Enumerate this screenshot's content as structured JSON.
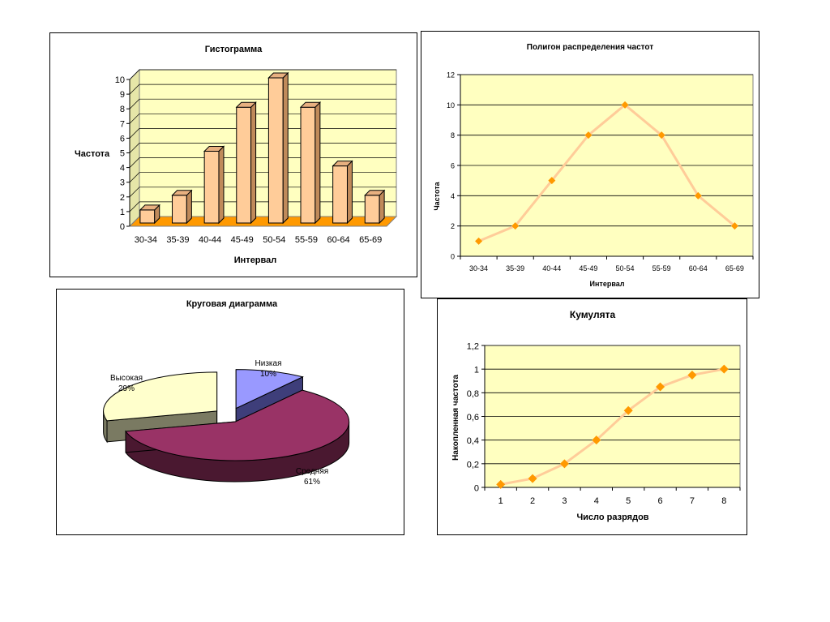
{
  "chart_data": [
    {
      "type": "bar",
      "title": "Гистограмма",
      "xlabel": "Интервал",
      "ylabel": "Частота",
      "categories": [
        "30-34",
        "35-39",
        "40-44",
        "45-49",
        "50-54",
        "55-59",
        "60-64",
        "65-69"
      ],
      "values": [
        1,
        2,
        5,
        8,
        10,
        8,
        4,
        2
      ],
      "ylim": [
        0,
        10
      ],
      "yticks": [
        "0",
        "1",
        "2",
        "3",
        "4",
        "5",
        "6",
        "7",
        "8",
        "9",
        "10"
      ],
      "grid": true,
      "style": "3d",
      "colors": {
        "bar": "#FFCC99",
        "plot_bg": "#FFFFC0",
        "floor": "#FF9900"
      }
    },
    {
      "type": "line",
      "title": "Полигон распределения частот",
      "xlabel": "Интервал",
      "ylabel": "Частота",
      "categories": [
        "30-34",
        "35-39",
        "40-44",
        "45-49",
        "50-54",
        "55-59",
        "60-64",
        "65-69"
      ],
      "values": [
        1,
        2,
        5,
        8,
        10,
        8,
        4,
        2
      ],
      "ylim": [
        0,
        12
      ],
      "yticks": [
        "0",
        "2",
        "4",
        "6",
        "8",
        "10",
        "12"
      ],
      "grid": true,
      "colors": {
        "line": "#FFCC99",
        "marker": "#FF9900",
        "plot_bg": "#FFFFC0"
      }
    },
    {
      "type": "pie",
      "title": "Круговая диаграмма",
      "style": "3d-exploded",
      "slices": [
        {
          "label": "Низкая",
          "pct_label": "10%",
          "value": 10,
          "color": "#9999FF",
          "side": "#3E3E7A"
        },
        {
          "label": "Средняя",
          "pct_label": "61%",
          "value": 61,
          "color": "#993366",
          "side": "#4A1830"
        },
        {
          "label": "Высокая",
          "pct_label": "29%",
          "value": 29,
          "color": "#FFFFCC",
          "side": "#7A7A62"
        }
      ]
    },
    {
      "type": "line",
      "title": "Кумулята",
      "xlabel": "Число разрядов",
      "ylabel": "Накопленная частота",
      "categories": [
        "1",
        "2",
        "3",
        "4",
        "5",
        "6",
        "7",
        "8"
      ],
      "values": [
        0.025,
        0.075,
        0.2,
        0.4,
        0.65,
        0.85,
        0.95,
        1
      ],
      "ylim": [
        0,
        1.2
      ],
      "yticks": [
        "0",
        "0,2",
        "0,4",
        "0,6",
        "0,8",
        "1",
        "1,2"
      ],
      "grid": true,
      "colors": {
        "line": "#FFCC99",
        "marker": "#FF9900",
        "plot_bg": "#FFFFC0"
      }
    }
  ]
}
